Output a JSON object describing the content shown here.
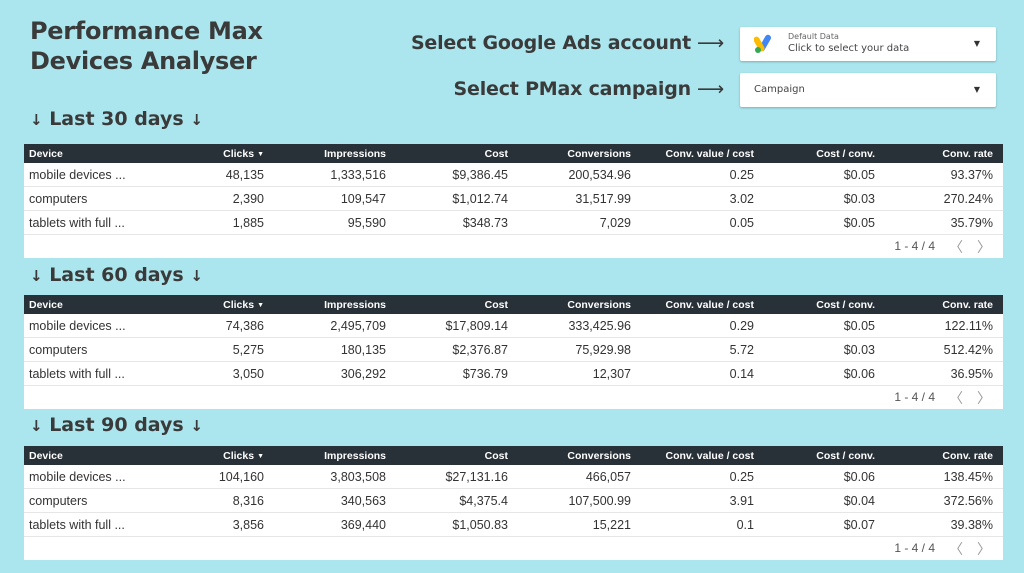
{
  "header": {
    "title_line1": "Performance Max",
    "title_line2": "Devices Analyser"
  },
  "selectors": {
    "account_label": "Select Google Ads account",
    "campaign_label": "Select PMax campaign",
    "arrow": "⟶",
    "account_control": {
      "small_text": "Default Data",
      "main_text": "Click to select your data",
      "logo_colors": [
        "#fbbc04",
        "#4285f4",
        "#34a853"
      ]
    },
    "campaign_control": {
      "text": "Campaign"
    }
  },
  "columns": [
    "Device",
    "Clicks",
    "Impressions",
    "Cost",
    "Conversions",
    "Conv. value / cost",
    "Cost / conv.",
    "Conv. rate"
  ],
  "sections": [
    {
      "title": "Last 30 days",
      "rows": [
        [
          "mobile devices ...",
          "48,135",
          "1,333,516",
          "$9,386.45",
          "200,534.96",
          "0.25",
          "$0.05",
          "93.37%"
        ],
        [
          "computers",
          "2,390",
          "109,547",
          "$1,012.74",
          "31,517.99",
          "3.02",
          "$0.03",
          "270.24%"
        ],
        [
          "tablets with full ...",
          "1,885",
          "95,590",
          "$348.73",
          "7,029",
          "0.05",
          "$0.05",
          "35.79%"
        ]
      ],
      "pagination": "1 - 4 / 4"
    },
    {
      "title": "Last 60 days",
      "rows": [
        [
          "mobile devices ...",
          "74,386",
          "2,495,709",
          "$17,809.14",
          "333,425.96",
          "0.29",
          "$0.05",
          "122.11%"
        ],
        [
          "computers",
          "5,275",
          "180,135",
          "$2,376.87",
          "75,929.98",
          "5.72",
          "$0.03",
          "512.42%"
        ],
        [
          "tablets with full ...",
          "3,050",
          "306,292",
          "$736.79",
          "12,307",
          "0.14",
          "$0.06",
          "36.95%"
        ]
      ],
      "pagination": "1 - 4 / 4"
    },
    {
      "title": "Last 90 days",
      "rows": [
        [
          "mobile devices ...",
          "104,160",
          "3,803,508",
          "$27,131.16",
          "466,057",
          "0.25",
          "$0.06",
          "138.45%"
        ],
        [
          "computers",
          "8,316",
          "340,563",
          "$4,375.4",
          "107,500.99",
          "3.91",
          "$0.04",
          "372.56%"
        ],
        [
          "tablets with full ...",
          "3,856",
          "369,440",
          "$1,050.83",
          "15,221",
          "0.1",
          "$0.07",
          "39.38%"
        ]
      ],
      "pagination": "1 - 4 / 4"
    }
  ],
  "icons": {
    "section_arrow": "↓",
    "sort_indicator": "▼",
    "dropdown_caret": "▼",
    "page_prev": "〈",
    "page_next": "〉"
  },
  "colors": {
    "background": "#abe6ee",
    "table_header": "#283038",
    "title_text": "#3a3a3a"
  }
}
